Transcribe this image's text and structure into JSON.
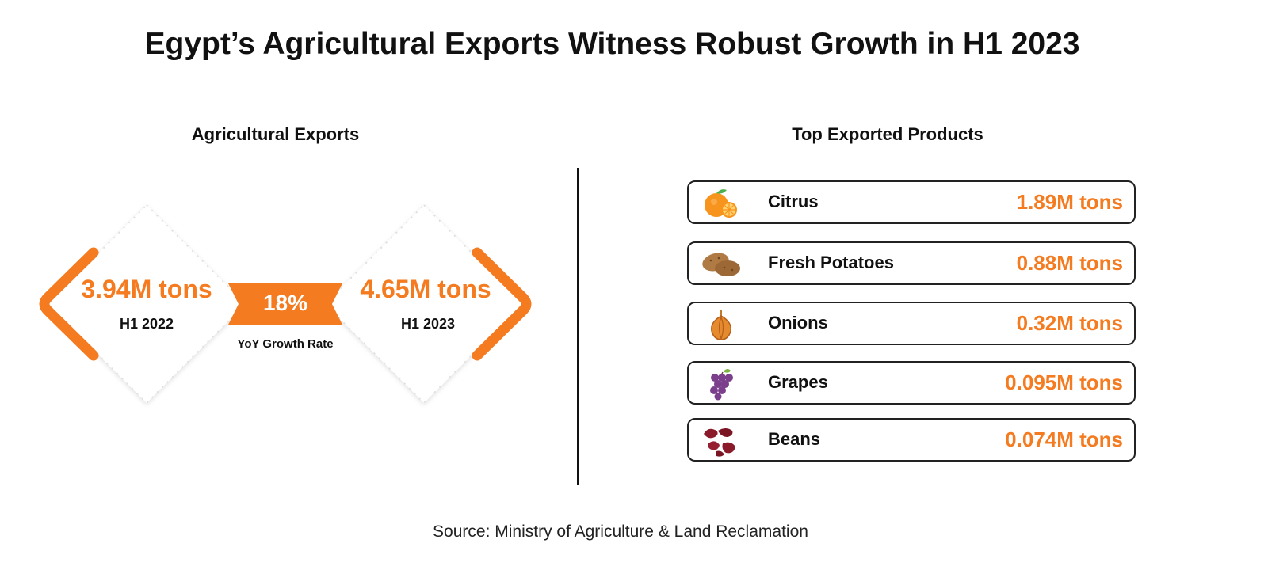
{
  "title": "Egypt’s Agricultural Exports Witness Robust Growth in H1 2023",
  "left_panel": {
    "heading": "Agricultural Exports",
    "h1_2022": {
      "value": "3.94M tons",
      "label": "H1 2022"
    },
    "h1_2023": {
      "value": "4.65M tons",
      "label": "H1 2023"
    },
    "growth": {
      "value": "18%",
      "label": "YoY Growth Rate"
    }
  },
  "right_panel": {
    "heading": "Top Exported Products",
    "products": [
      {
        "name": "Citrus",
        "value": "1.89M tons",
        "icon": "orange-icon"
      },
      {
        "name": "Fresh Potatoes",
        "value": "0.88M tons",
        "icon": "potato-icon"
      },
      {
        "name": "Onions",
        "value": "0.32M tons",
        "icon": "onion-icon"
      },
      {
        "name": "Grapes",
        "value": "0.095M tons",
        "icon": "grapes-icon"
      },
      {
        "name": "Beans",
        "value": "0.074M tons",
        "icon": "beans-icon"
      }
    ]
  },
  "source": "Source: Ministry of Agriculture & Land Reclamation",
  "colors": {
    "accent": "#f47b20",
    "text": "#111111",
    "background": "#ffffff"
  }
}
